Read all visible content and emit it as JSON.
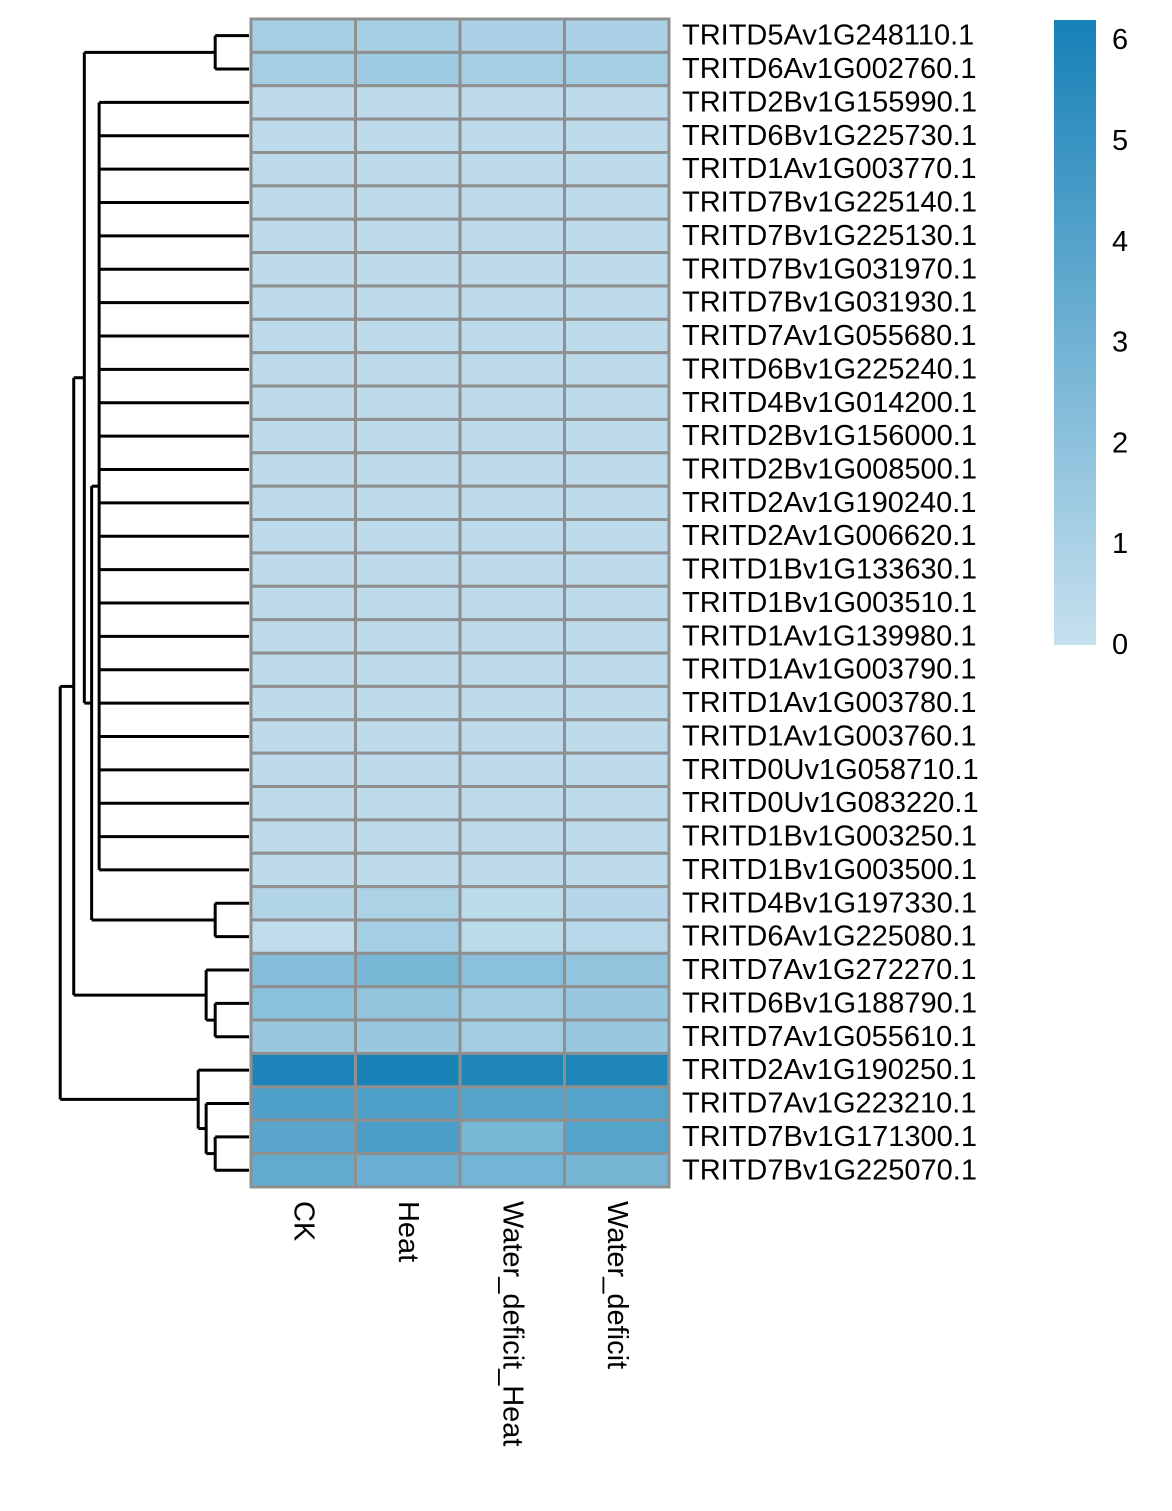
{
  "chart_data": {
    "type": "heatmap",
    "title": "",
    "xlabel": "",
    "ylabel": "",
    "columns": [
      "CK",
      "Heat",
      "Water_deficit_Heat",
      "Water_deficit"
    ],
    "rows": [
      "TRITD5Av1G248110.1",
      "TRITD6Av1G002760.1",
      "TRITD2Bv1G155990.1",
      "TRITD6Bv1G225730.1",
      "TRITD1Av1G003770.1",
      "TRITD7Bv1G225140.1",
      "TRITD7Bv1G225130.1",
      "TRITD7Bv1G031970.1",
      "TRITD7Bv1G031930.1",
      "TRITD7Av1G055680.1",
      "TRITD6Bv1G225240.1",
      "TRITD4Bv1G014200.1",
      "TRITD2Bv1G156000.1",
      "TRITD2Bv1G008500.1",
      "TRITD2Av1G190240.1",
      "TRITD2Av1G006620.1",
      "TRITD1Bv1G133630.1",
      "TRITD1Bv1G003510.1",
      "TRITD1Av1G139980.1",
      "TRITD1Av1G003790.1",
      "TRITD1Av1G003780.1",
      "TRITD1Av1G003760.1",
      "TRITD0Uv1G058710.1",
      "TRITD0Uv1G083220.1",
      "TRITD1Bv1G003250.1",
      "TRITD1Bv1G003500.1",
      "TRITD4Bv1G197330.1",
      "TRITD6Av1G225080.1",
      "TRITD7Av1G272270.1",
      "TRITD6Bv1G188790.1",
      "TRITD7Av1G055610.1",
      "TRITD2Av1G190250.1",
      "TRITD7Av1G223210.1",
      "TRITD7Bv1G171300.1",
      "TRITD7Bv1G225070.1"
    ],
    "values": [
      [
        1.1,
        1.1,
        1.0,
        1.0
      ],
      [
        1.2,
        1.4,
        1.2,
        1.2
      ],
      [
        0.3,
        0.3,
        0.3,
        0.3
      ],
      [
        0.3,
        0.3,
        0.3,
        0.3
      ],
      [
        0.3,
        0.3,
        0.3,
        0.3
      ],
      [
        0.3,
        0.3,
        0.3,
        0.3
      ],
      [
        0.3,
        0.3,
        0.3,
        0.3
      ],
      [
        0.3,
        0.3,
        0.3,
        0.3
      ],
      [
        0.3,
        0.3,
        0.3,
        0.3
      ],
      [
        0.3,
        0.3,
        0.3,
        0.3
      ],
      [
        0.3,
        0.3,
        0.3,
        0.3
      ],
      [
        0.3,
        0.3,
        0.3,
        0.3
      ],
      [
        0.3,
        0.3,
        0.3,
        0.3
      ],
      [
        0.3,
        0.3,
        0.3,
        0.3
      ],
      [
        0.3,
        0.3,
        0.3,
        0.3
      ],
      [
        0.3,
        0.3,
        0.3,
        0.3
      ],
      [
        0.3,
        0.3,
        0.3,
        0.3
      ],
      [
        0.3,
        0.3,
        0.3,
        0.3
      ],
      [
        0.3,
        0.3,
        0.3,
        0.3
      ],
      [
        0.3,
        0.3,
        0.3,
        0.3
      ],
      [
        0.3,
        0.3,
        0.3,
        0.3
      ],
      [
        0.3,
        0.3,
        0.3,
        0.3
      ],
      [
        0.3,
        0.3,
        0.3,
        0.3
      ],
      [
        0.3,
        0.3,
        0.3,
        0.3
      ],
      [
        0.3,
        0.3,
        0.3,
        0.3
      ],
      [
        0.3,
        0.3,
        0.3,
        0.3
      ],
      [
        0.7,
        0.9,
        0.4,
        0.6
      ],
      [
        0.2,
        1.2,
        0.4,
        0.5
      ],
      [
        2.3,
        2.7,
        2.1,
        1.8
      ],
      [
        2.1,
        1.8,
        1.3,
        1.6
      ],
      [
        1.6,
        1.6,
        1.3,
        1.6
      ],
      [
        6.0,
        6.1,
        5.9,
        5.9
      ],
      [
        4.2,
        4.2,
        3.9,
        4.0
      ],
      [
        3.8,
        4.3,
        2.7,
        4.0
      ],
      [
        3.5,
        3.2,
        2.9,
        2.8
      ]
    ],
    "color_scale": {
      "min": 0,
      "max": 6.2,
      "low_color": "#c6e0ee",
      "high_color": "#1681b7",
      "ticks": [
        0,
        1,
        2,
        3,
        4,
        5,
        6
      ],
      "placement": "right"
    },
    "dendrogram": {
      "side": "left",
      "clusters": [
        [
          [
            [
              0,
              1
            ],
            [
              [
                2,
                3,
                4,
                5,
                6,
                7,
                8,
                9,
                10,
                11,
                12,
                13,
                14,
                15,
                16,
                17,
                18,
                19,
                20,
                21,
                22,
                23,
                24,
                25
              ],
              [
                26,
                27
              ]
            ]
          ],
          [
            28,
            [
              29,
              30
            ]
          ]
        ],
        [
          31,
          [
            32,
            [
              33,
              34
            ]
          ]
        ]
      ]
    }
  }
}
